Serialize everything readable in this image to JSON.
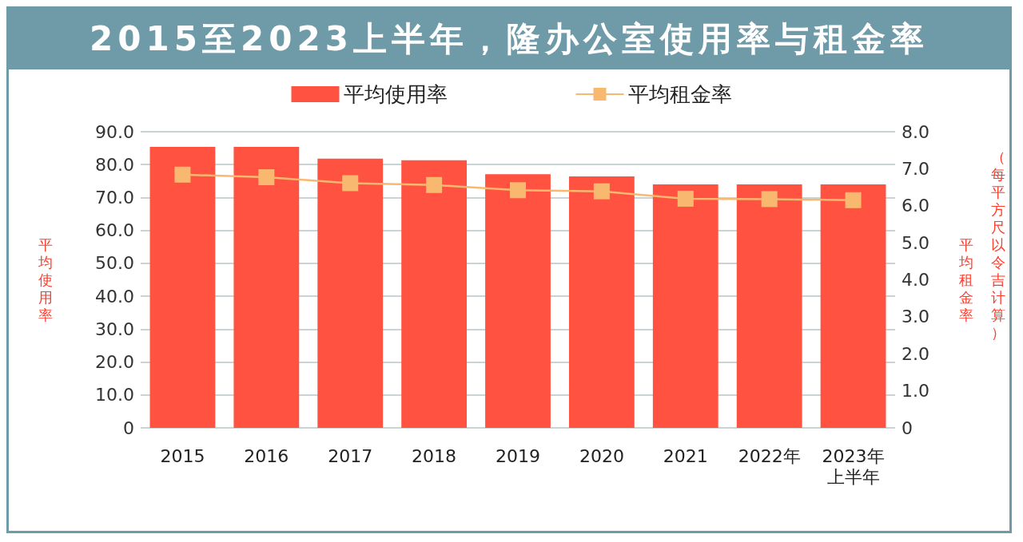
{
  "chart_data": {
    "type": "bar",
    "title": "2015至2023上半年，隆办公室使用率与租金率",
    "categories": [
      "2015",
      "2016",
      "2017",
      "2018",
      "2019",
      "2020",
      "2021",
      "2022年",
      "2023年上半年"
    ],
    "series": [
      {
        "name": "平均使用率",
        "color": "#ff5240",
        "values": [
          85.4,
          85.4,
          81.8,
          81.3,
          77.1,
          76.4,
          74.0,
          74.0,
          74.0
        ]
      },
      {
        "name": "平均租金率",
        "type": "line",
        "axis": "y2",
        "color": "#f9b870",
        "values": [
          6.84,
          6.77,
          6.61,
          6.56,
          6.42,
          6.39,
          6.19,
          6.18,
          6.15
        ]
      }
    ],
    "ylabel": "平均使用率",
    "y2label": "平均租金率",
    "annotations": [
      "（每平方尺以令吉计算）"
    ],
    "ylim": [
      0,
      90
    ],
    "yticks": [
      {
        "value": 0,
        "label": "0"
      },
      {
        "value": 10,
        "label": "10.0"
      },
      {
        "value": 20,
        "label": "20.0"
      },
      {
        "value": 30,
        "label": "30.0"
      },
      {
        "value": 40,
        "label": "40.0"
      },
      {
        "value": 50,
        "label": "50.0"
      },
      {
        "value": 60,
        "label": "60.0"
      },
      {
        "value": 70,
        "label": "70.0"
      },
      {
        "value": 80,
        "label": "80.0"
      },
      {
        "value": 90,
        "label": "90.0"
      }
    ],
    "y2lim": [
      0,
      8
    ],
    "y2ticks": [
      {
        "value": 0,
        "label": "0"
      },
      {
        "value": 1,
        "label": "1.0"
      },
      {
        "value": 2,
        "label": "2.0"
      },
      {
        "value": 3,
        "label": "3.0"
      },
      {
        "value": 4,
        "label": "4.0"
      },
      {
        "value": 5,
        "label": "5.0"
      },
      {
        "value": 6,
        "label": "6.0"
      },
      {
        "value": 7,
        "label": "7.0"
      },
      {
        "value": 8,
        "label": "8.0"
      }
    ],
    "grid": "y",
    "legend": "top",
    "marker": "square",
    "line_style": "solid"
  }
}
